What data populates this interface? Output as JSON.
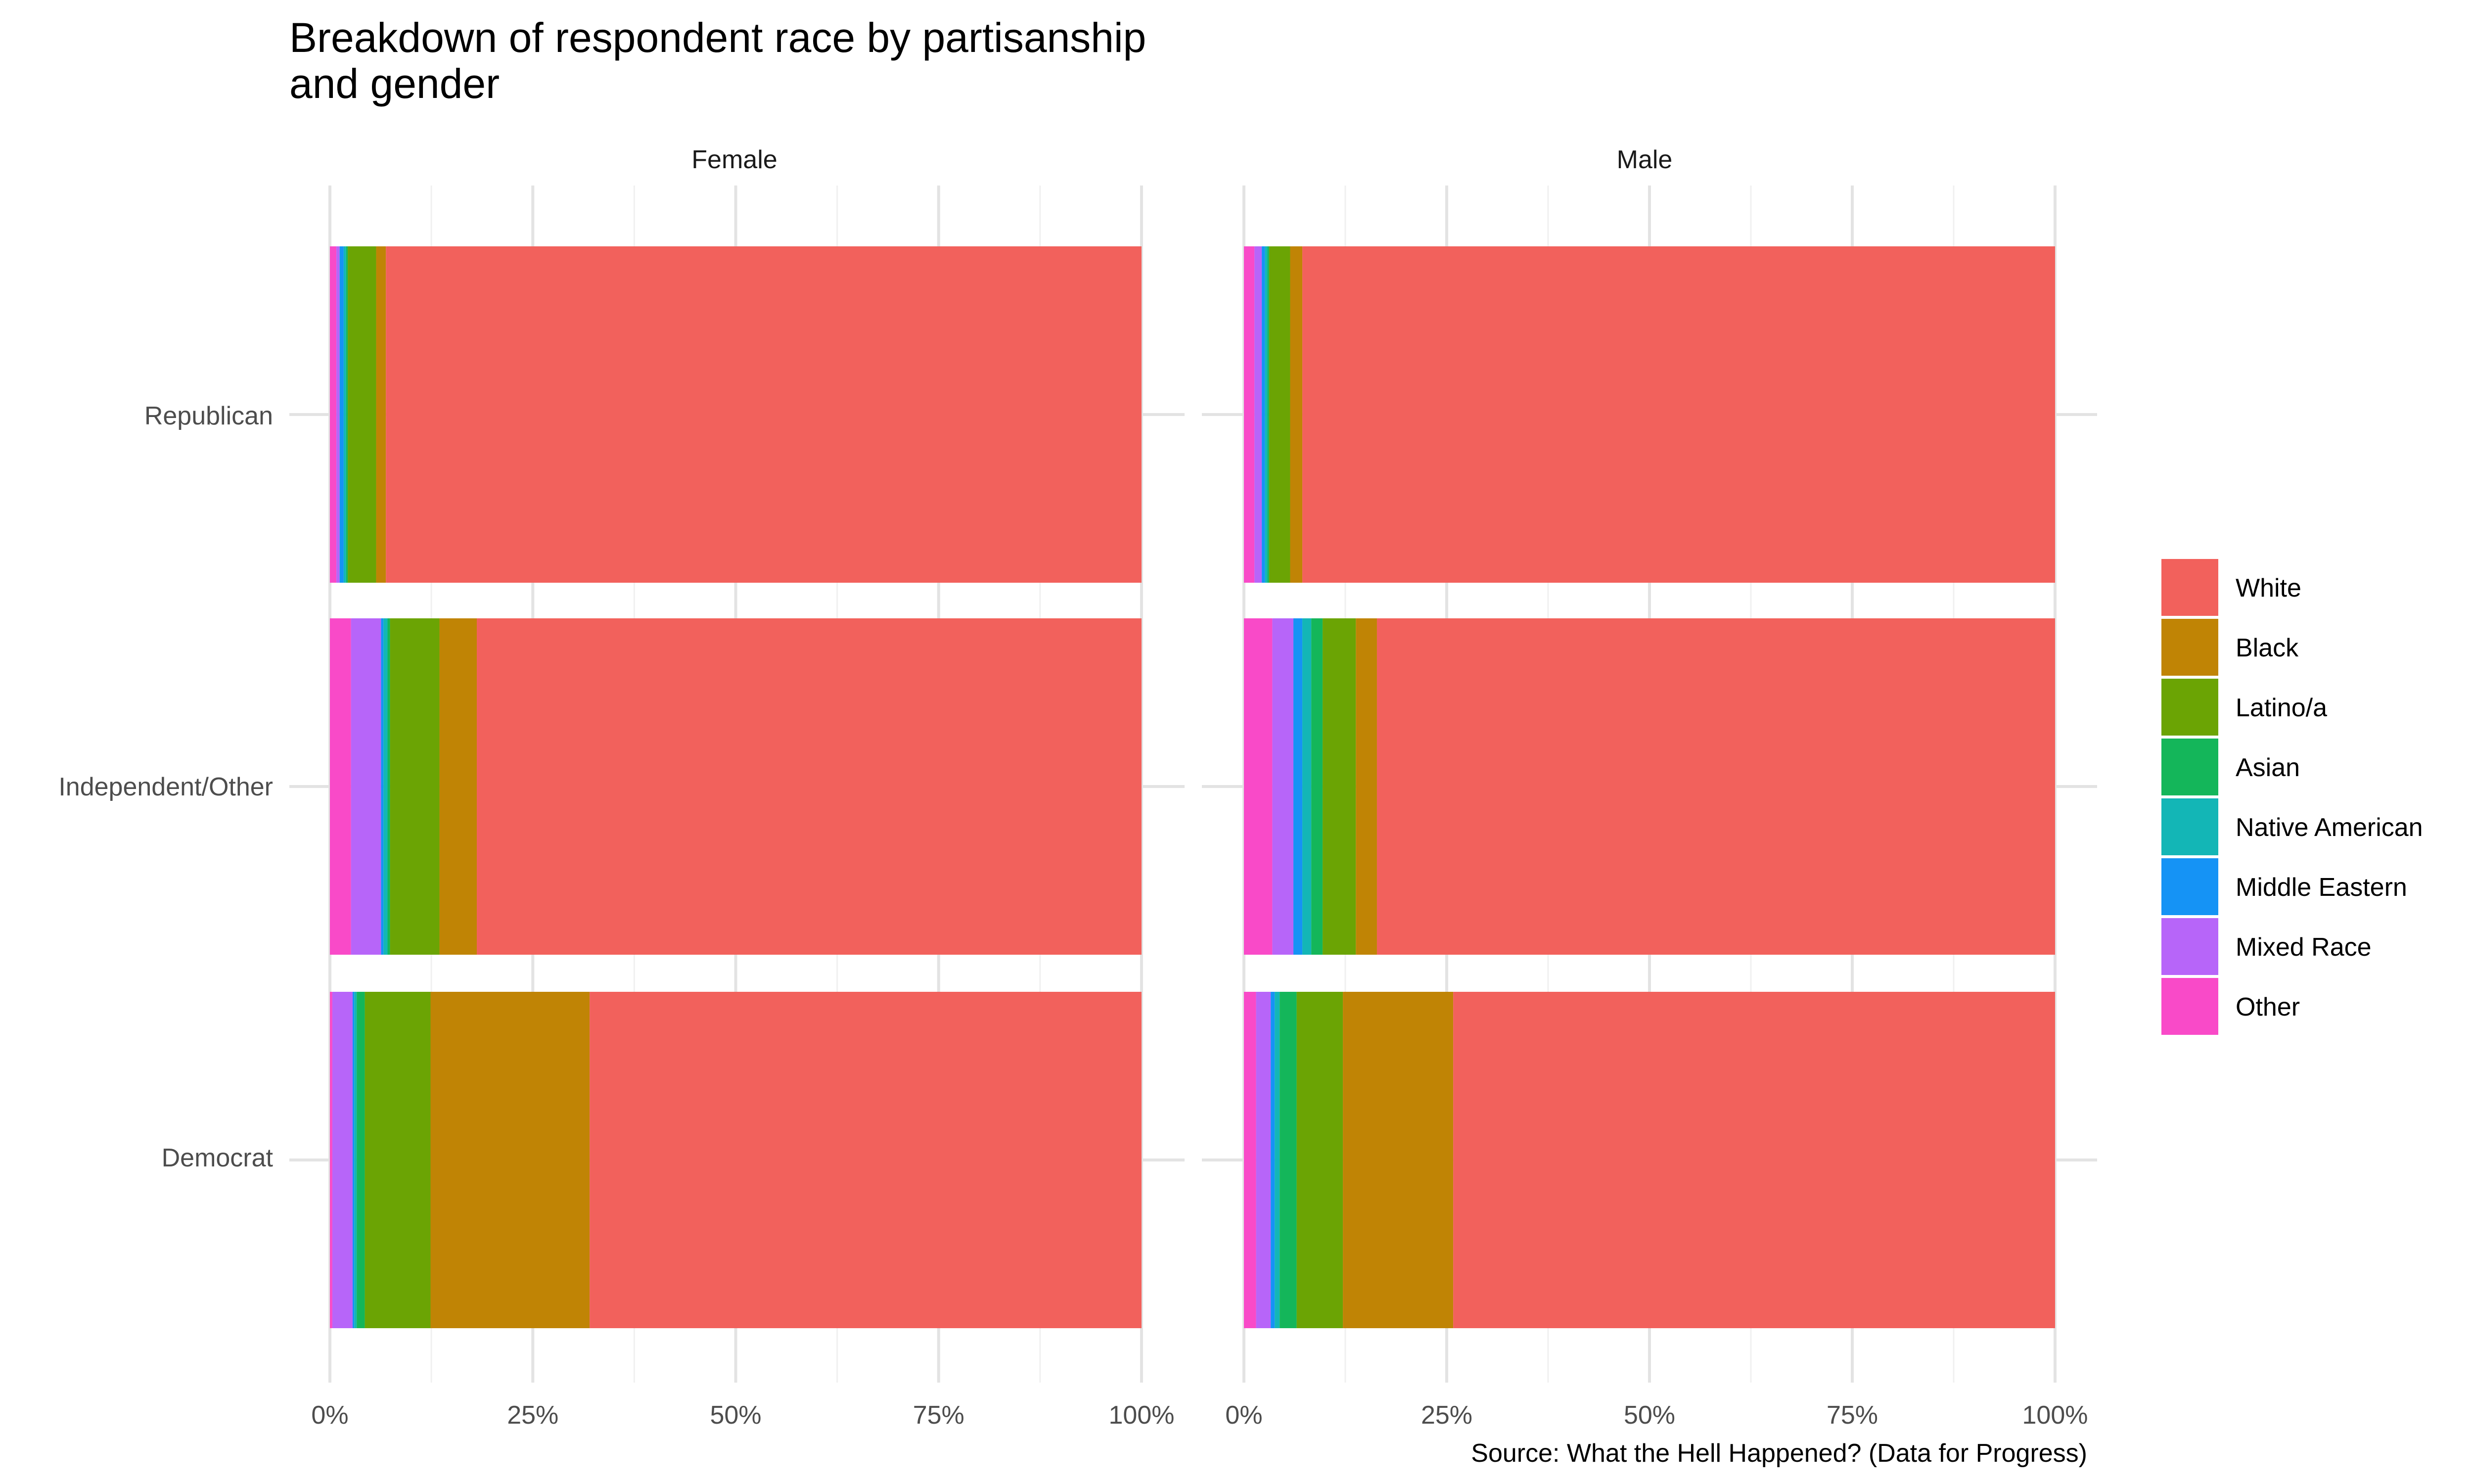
{
  "chart_data": {
    "type": "bar",
    "orientation": "horizontal",
    "stacked": "percent",
    "title_lines": [
      "Breakdown of respondent race by partisanship",
      "and gender"
    ],
    "caption": "Source: What the Hell Happened? (Data for Progress)",
    "facets": [
      "Female",
      "Male"
    ],
    "categories": [
      "Republican",
      "Independent/Other",
      "Democrat"
    ],
    "x_ticks": [
      "0%",
      "25%",
      "50%",
      "75%",
      "100%"
    ],
    "xlim": [
      0,
      100
    ],
    "grid": true,
    "legend_position": "right",
    "legend": [
      "White",
      "Black",
      "Latino/a",
      "Asian",
      "Native American",
      "Middle Eastern",
      "Mixed Race",
      "Other"
    ],
    "colors": {
      "White": "#F2615C",
      "Black": "#C08405",
      "Latino/a": "#6BA404",
      "Asian": "#14B65A",
      "Native American": "#13B6B6",
      "Middle Eastern": "#1593F5",
      "Mixed Race": "#B765F9",
      "Other": "#F94AC8"
    },
    "stack_order": [
      "Other",
      "Mixed Race",
      "Middle Eastern",
      "Native American",
      "Asian",
      "Latino/a",
      "Black",
      "White"
    ],
    "series": [
      {
        "name": "Other",
        "values": {
          "Female": [
            0.8,
            2.6,
            0.3
          ],
          "Male": [
            1.3,
            3.5,
            1.5
          ]
        }
      },
      {
        "name": "Mixed Race",
        "values": {
          "Female": [
            0.4,
            3.7,
            2.5
          ],
          "Male": [
            0.9,
            2.6,
            1.8
          ]
        }
      },
      {
        "name": "Middle Eastern",
        "values": {
          "Female": [
            0.5,
            0.3,
            0.2
          ],
          "Male": [
            0.4,
            1.1,
            0.5
          ]
        }
      },
      {
        "name": "Native American",
        "values": {
          "Female": [
            0.3,
            0.5,
            0.3
          ],
          "Male": [
            0.3,
            1.1,
            0.6
          ]
        }
      },
      {
        "name": "Asian",
        "values": {
          "Female": [
            0.2,
            0.3,
            1.0
          ],
          "Male": [
            0.2,
            1.4,
            2.1
          ]
        }
      },
      {
        "name": "Latino/a",
        "values": {
          "Female": [
            3.5,
            6.1,
            8.1
          ],
          "Male": [
            2.6,
            4.1,
            5.7
          ]
        }
      },
      {
        "name": "Black",
        "values": {
          "Female": [
            1.2,
            4.6,
            19.6
          ],
          "Male": [
            1.5,
            2.6,
            13.6
          ]
        }
      },
      {
        "name": "White",
        "values": {
          "Female": [
            93.1,
            81.9,
            68.0
          ],
          "Male": [
            92.8,
            83.6,
            74.2
          ]
        }
      }
    ]
  }
}
